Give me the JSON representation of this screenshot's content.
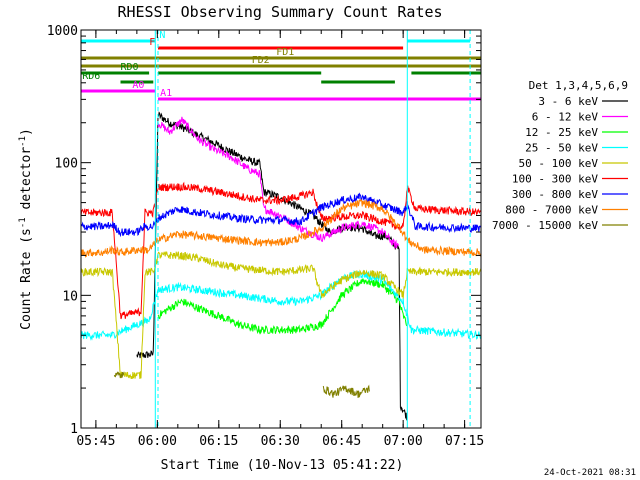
{
  "chart_data": {
    "type": "line",
    "title": "RHESSI Observing Summary Count Rates",
    "xlabel": "Start Time (10-Nov-13 05:41:22)",
    "ylabel_pre": "Count Rate (s",
    "ylabel_sup1": "-1",
    "ylabel_mid": " detector",
    "ylabel_sup2": "-1",
    "ylabel_post": ")",
    "y_scale": "log",
    "ylim": [
      1,
      1000
    ],
    "xlim": [
      "05:41:22",
      "07:19:00"
    ],
    "x_ticks": [
      {
        "t": "05:45",
        "label": "05:45"
      },
      {
        "t": "06:00",
        "label": "06:00"
      },
      {
        "t": "06:15",
        "label": "06:15"
      },
      {
        "t": "06:30",
        "label": "06:30"
      },
      {
        "t": "06:45",
        "label": "06:45"
      },
      {
        "t": "07:00",
        "label": "07:00"
      },
      {
        "t": "07:15",
        "label": "07:15"
      }
    ],
    "y_ticks": [
      {
        "v": 1,
        "label": "1"
      },
      {
        "v": 10,
        "label": "10"
      },
      {
        "v": 100,
        "label": "100"
      },
      {
        "v": 1000,
        "label": "1000"
      }
    ],
    "vertical_lines": [
      {
        "t": "05:59:30",
        "color": "#00ffff",
        "style": "solid"
      },
      {
        "t": "06:00:10",
        "color": "#00ffff",
        "style": "dashed"
      },
      {
        "t": "07:01:00",
        "color": "#00ffff",
        "style": "solid"
      },
      {
        "t": "07:16:20",
        "color": "#00ffff",
        "style": "dashed"
      }
    ],
    "flags": [
      {
        "label": "N",
        "color": "#00ffff",
        "label_at": "06:00:30",
        "label_side": "right",
        "segments": [
          [
            "05:41:22",
            "05:59:30"
          ],
          [
            "07:01:00",
            "07:16:20"
          ]
        ]
      },
      {
        "label": "F",
        "color": "#ff0000",
        "label_at": "05:59:30",
        "label_side": "left",
        "segments": [
          [
            "06:00:10",
            "07:00:00"
          ]
        ]
      },
      {
        "label": "FD1",
        "color": "#808000",
        "label_at": "06:29:00",
        "label_side": "right",
        "segments": [
          [
            "05:41:22",
            "07:19:00"
          ]
        ]
      },
      {
        "label": "FD2",
        "color": "#808000",
        "label_at": "06:23:00",
        "label_side": "right",
        "segments": [
          [
            "05:41:22",
            "07:19:00"
          ]
        ]
      },
      {
        "label": "RD0",
        "color": "#008000",
        "label_at": "05:51:00",
        "label_side": "right",
        "segments": [
          [
            "05:41:22",
            "05:58:00"
          ],
          [
            "06:00:10",
            "06:40:00"
          ],
          [
            "07:02:00",
            "07:19:00"
          ]
        ]
      },
      {
        "label": "RD6",
        "color": "#008000",
        "label_at": "05:41:40",
        "label_side": "right",
        "segments": [
          [
            "05:51:00",
            "05:59:00"
          ],
          [
            "06:40:00",
            "06:58:00"
          ]
        ]
      },
      {
        "label": "A0",
        "color": "#ff00ff",
        "label_at": "05:56:50",
        "label_side": "left",
        "segments": [
          [
            "05:41:22",
            "05:59:30"
          ]
        ]
      },
      {
        "label": "A1",
        "color": "#ff00ff",
        "label_at": "06:00:40",
        "label_side": "right",
        "segments": [
          [
            "06:00:10",
            "07:19:00"
          ]
        ]
      }
    ],
    "legend_title": "Det 1,3,4,5,6,9",
    "series": [
      {
        "name": "3 - 6 keV",
        "color": "#000000",
        "values": [
          [
            "05:41:22",
            null
          ],
          [
            "05:50:00",
            null
          ],
          [
            "05:55:00",
            3.5
          ],
          [
            "05:59:00",
            3.6
          ],
          [
            "06:00:10",
            230
          ],
          [
            "06:03:00",
            200
          ],
          [
            "06:06:00",
            185
          ],
          [
            "06:10:00",
            160
          ],
          [
            "06:14:00",
            140
          ],
          [
            "06:18:00",
            120
          ],
          [
            "06:22:00",
            105
          ],
          [
            "06:25:00",
            98
          ],
          [
            "06:26:00",
            60
          ],
          [
            "06:30:00",
            55
          ],
          [
            "06:35:00",
            45
          ],
          [
            "06:38:00",
            40
          ],
          [
            "06:42:00",
            30
          ],
          [
            "06:46:00",
            33
          ],
          [
            "06:50:00",
            32
          ],
          [
            "06:53:00",
            28
          ],
          [
            "06:56:00",
            28
          ],
          [
            "06:59:00",
            22
          ],
          [
            "06:59:20",
            1.5
          ],
          [
            "07:01:00",
            1.2
          ],
          [
            "07:01:30",
            null
          ]
        ]
      },
      {
        "name": "6 - 12 keV",
        "color": "#ff00ff",
        "values": [
          [
            "06:00:10",
            200
          ],
          [
            "06:03:00",
            170
          ],
          [
            "06:06:00",
            210
          ],
          [
            "06:10:00",
            150
          ],
          [
            "06:14:00",
            125
          ],
          [
            "06:18:00",
            110
          ],
          [
            "06:22:00",
            90
          ],
          [
            "06:25:00",
            82
          ],
          [
            "06:26:00",
            45
          ],
          [
            "06:30:00",
            40
          ],
          [
            "06:35:00",
            32
          ],
          [
            "06:40:00",
            27
          ],
          [
            "06:45:00",
            32
          ],
          [
            "06:50:00",
            35
          ],
          [
            "06:55:00",
            30
          ],
          [
            "06:58:00",
            24
          ],
          [
            "06:59:00",
            24
          ],
          [
            "06:59:20",
            null
          ]
        ]
      },
      {
        "name": "12 - 25 keV",
        "color": "#00ff00",
        "values": [
          [
            "05:41:22",
            null
          ],
          [
            "05:59:00",
            null
          ],
          [
            "06:00:10",
            7
          ],
          [
            "06:03:00",
            8
          ],
          [
            "06:06:00",
            9
          ],
          [
            "06:10:00",
            8
          ],
          [
            "06:15:00",
            7
          ],
          [
            "06:20:00",
            6
          ],
          [
            "06:25:00",
            5.5
          ],
          [
            "06:30:00",
            5.5
          ],
          [
            "06:35:00",
            5.5
          ],
          [
            "06:40:00",
            6
          ],
          [
            "06:45:00",
            10
          ],
          [
            "06:50:00",
            13
          ],
          [
            "06:55:00",
            12
          ],
          [
            "06:59:00",
            9
          ],
          [
            "07:00:00",
            7
          ],
          [
            "07:01:00",
            6
          ],
          [
            "07:02:00",
            null
          ]
        ]
      },
      {
        "name": "25 - 50 keV",
        "color": "#00ffff",
        "values": [
          [
            "05:41:22",
            5
          ],
          [
            "05:47:00",
            5
          ],
          [
            "05:49:00",
            5
          ],
          [
            "05:52:00",
            5.5
          ],
          [
            "05:55:00",
            6
          ],
          [
            "05:58:00",
            6.5
          ],
          [
            "06:00:10",
            11
          ],
          [
            "06:05:00",
            11.5
          ],
          [
            "06:10:00",
            11
          ],
          [
            "06:15:00",
            10.5
          ],
          [
            "06:20:00",
            10
          ],
          [
            "06:25:00",
            9.5
          ],
          [
            "06:30:00",
            9
          ],
          [
            "06:35:00",
            9
          ],
          [
            "06:40:00",
            10
          ],
          [
            "06:45:00",
            13.5
          ],
          [
            "06:50:00",
            14.5
          ],
          [
            "06:55:00",
            13
          ],
          [
            "07:00:00",
            9
          ],
          [
            "07:02:00",
            5.5
          ],
          [
            "07:19:00",
            5
          ]
        ]
      },
      {
        "name": "50 - 100 keV",
        "color": "#c8c800",
        "values": [
          [
            "05:41:22",
            15
          ],
          [
            "05:47:00",
            15
          ],
          [
            "05:49:00",
            15
          ],
          [
            "05:51:00",
            2.5
          ],
          [
            "05:56:00",
            2.5
          ],
          [
            "05:57:00",
            15
          ],
          [
            "05:59:00",
            15
          ],
          [
            "06:00:10",
            20
          ],
          [
            "06:05:00",
            20
          ],
          [
            "06:10:00",
            19
          ],
          [
            "06:15:00",
            17
          ],
          [
            "06:20:00",
            16
          ],
          [
            "06:25:00",
            15.5
          ],
          [
            "06:30:00",
            15
          ],
          [
            "06:35:00",
            15.5
          ],
          [
            "06:38:00",
            16
          ],
          [
            "06:40:00",
            10
          ],
          [
            "06:45:00",
            13
          ],
          [
            "06:50:00",
            15
          ],
          [
            "06:55:00",
            14
          ],
          [
            "07:00:00",
            10
          ],
          [
            "07:01:00",
            15
          ],
          [
            "07:05:00",
            15
          ],
          [
            "07:19:00",
            15
          ]
        ]
      },
      {
        "name": "100 - 300 keV",
        "color": "#ff0000",
        "values": [
          [
            "05:41:22",
            42
          ],
          [
            "05:47:00",
            42
          ],
          [
            "05:49:00",
            42
          ],
          [
            "05:51:00",
            7
          ],
          [
            "05:56:00",
            7.5
          ],
          [
            "05:57:00",
            42
          ],
          [
            "05:59:00",
            42
          ],
          [
            "06:00:10",
            65
          ],
          [
            "06:05:00",
            66
          ],
          [
            "06:10:00",
            64
          ],
          [
            "06:15:00",
            60
          ],
          [
            "06:20:00",
            56
          ],
          [
            "06:25:00",
            52
          ],
          [
            "06:30:00",
            52
          ],
          [
            "06:35:00",
            56
          ],
          [
            "06:38:00",
            60
          ],
          [
            "06:40:00",
            38
          ],
          [
            "06:45:00",
            39
          ],
          [
            "06:50:00",
            40
          ],
          [
            "06:55:00",
            36
          ],
          [
            "07:00:00",
            32
          ],
          [
            "07:01:00",
            65
          ],
          [
            "07:03:00",
            45
          ],
          [
            "07:19:00",
            42
          ]
        ]
      },
      {
        "name": "300 - 800 keV",
        "color": "#0000ff",
        "values": [
          [
            "05:41:22",
            33
          ],
          [
            "05:47:00",
            33
          ],
          [
            "05:49:00",
            34
          ],
          [
            "05:51:00",
            30
          ],
          [
            "05:55:00",
            30
          ],
          [
            "05:57:00",
            33
          ],
          [
            "05:59:00",
            33
          ],
          [
            "06:00:10",
            38
          ],
          [
            "06:05:00",
            45
          ],
          [
            "06:10:00",
            42
          ],
          [
            "06:15:00",
            40
          ],
          [
            "06:20:00",
            38
          ],
          [
            "06:25:00",
            37
          ],
          [
            "06:30:00",
            37
          ],
          [
            "06:35:00",
            36
          ],
          [
            "06:40:00",
            46
          ],
          [
            "06:45:00",
            52
          ],
          [
            "06:50:00",
            55
          ],
          [
            "06:55:00",
            48
          ],
          [
            "07:00:00",
            42
          ],
          [
            "07:01:00",
            48
          ],
          [
            "07:03:00",
            33
          ],
          [
            "07:19:00",
            32
          ]
        ]
      },
      {
        "name": "800 - 7000 keV",
        "color": "#ff8000",
        "values": [
          [
            "05:41:22",
            21
          ],
          [
            "05:47:00",
            21
          ],
          [
            "05:49:00",
            22
          ],
          [
            "05:51:00",
            21
          ],
          [
            "05:55:00",
            22
          ],
          [
            "05:58:00",
            22
          ],
          [
            "06:00:10",
            26
          ],
          [
            "06:05:00",
            29
          ],
          [
            "06:10:00",
            28
          ],
          [
            "06:15:00",
            27
          ],
          [
            "06:20:00",
            26
          ],
          [
            "06:25:00",
            25
          ],
          [
            "06:30:00",
            25
          ],
          [
            "06:35:00",
            27
          ],
          [
            "06:40:00",
            32
          ],
          [
            "06:45:00",
            45
          ],
          [
            "06:50:00",
            50
          ],
          [
            "06:55:00",
            45
          ],
          [
            "07:00:00",
            30
          ],
          [
            "07:01:00",
            26
          ],
          [
            "07:05:00",
            22
          ],
          [
            "07:19:00",
            21
          ]
        ]
      },
      {
        "name": "7000 - 15000 keV",
        "color": "#808000",
        "values": [
          [
            "05:41:22",
            null
          ],
          [
            "05:49:00",
            null
          ],
          [
            "05:49:30",
            2.5
          ],
          [
            "05:52:00",
            2.5
          ],
          [
            "05:53:00",
            null
          ],
          [
            "06:40:00",
            null
          ],
          [
            "06:40:30",
            2.0
          ],
          [
            "06:43:00",
            1.8
          ],
          [
            "06:46:00",
            2.0
          ],
          [
            "06:49:00",
            1.8
          ],
          [
            "06:52:00",
            2.0
          ],
          [
            "06:53:00",
            null
          ]
        ]
      }
    ],
    "timestamp": "24-Oct-2021 08:31"
  }
}
